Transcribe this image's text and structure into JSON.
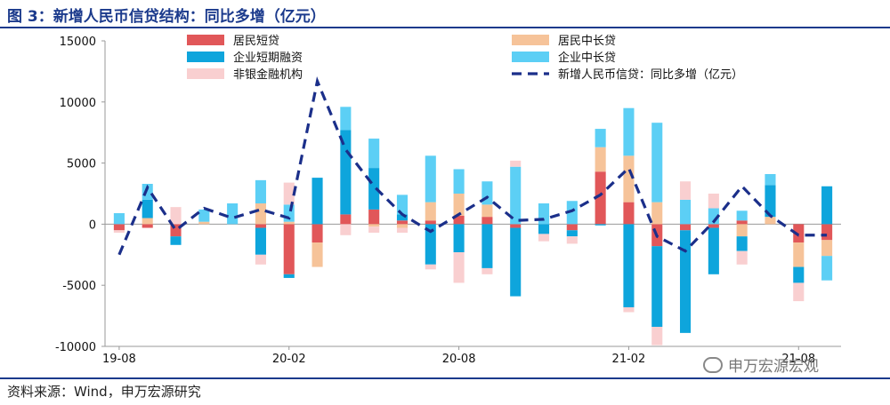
{
  "title": "图 3：新增人民币信贷结构：同比多增（亿元）",
  "source": "资料来源：Wind，申万宏源研究",
  "watermark": "申万宏源宏观",
  "chart_data": {
    "type": "bar",
    "stacked": true,
    "title": "图 3：新增人民币信贷结构：同比多增（亿元）",
    "xlabel": "",
    "ylabel": "",
    "ylim": [
      -10000,
      15000
    ],
    "yticks": [
      15000,
      10000,
      5000,
      0,
      -5000,
      -10000
    ],
    "ytick_labels": [
      "15000",
      "10000",
      "5000",
      "0",
      "-5000",
      "-10000"
    ],
    "xtick_labels": [
      {
        "label": "19-08",
        "index": 0
      },
      {
        "label": "20-02",
        "index": 6
      },
      {
        "label": "20-08",
        "index": 12
      },
      {
        "label": "21-02",
        "index": 18
      },
      {
        "label": "21-08",
        "index": 24
      }
    ],
    "categories": [
      "19-08",
      "19-09",
      "19-10",
      "19-11",
      "19-12",
      "20-01",
      "20-02",
      "20-03",
      "20-04",
      "20-05",
      "20-06",
      "20-07",
      "20-08",
      "20-09",
      "20-10",
      "20-11",
      "20-12",
      "21-01",
      "21-02",
      "21-03",
      "21-04",
      "21-05",
      "21-06",
      "21-07",
      "21-08",
      "21-09"
    ],
    "series": [
      {
        "name": "居民短贷",
        "color": "#e15759",
        "kind": "bar",
        "values": [
          -500,
          -300,
          -1000,
          0,
          0,
          -300,
          -4100,
          -1500,
          800,
          1200,
          300,
          300,
          700,
          600,
          -300,
          0,
          -500,
          4300,
          1800,
          -1800,
          -500,
          -300,
          300,
          0,
          -1500,
          -1300
        ]
      },
      {
        "name": "居民中长贷",
        "color": "#f6c399",
        "kind": "bar",
        "values": [
          0,
          500,
          0,
          200,
          0,
          1700,
          200,
          -2000,
          0,
          -200,
          -300,
          1500,
          1800,
          1000,
          0,
          0,
          0,
          2000,
          3800,
          1800,
          0,
          0,
          -1000,
          600,
          -2000,
          -1300
        ]
      },
      {
        "name": "企业短期融资",
        "color": "#0ea5dc",
        "kind": "bar",
        "values": [
          0,
          1500,
          -700,
          0,
          0,
          -2200,
          -300,
          3800,
          6900,
          3400,
          500,
          -3300,
          -2300,
          -3600,
          -5600,
          -800,
          -500,
          -100,
          -6800,
          -6600,
          -8400,
          -3800,
          -1200,
          2600,
          -1300,
          3100
        ]
      },
      {
        "name": "企业中长贷",
        "color": "#5ccff5",
        "kind": "bar",
        "values": [
          900,
          1300,
          0,
          1000,
          1700,
          1900,
          1400,
          0,
          1900,
          2400,
          1600,
          3800,
          2000,
          1900,
          4700,
          1700,
          1900,
          1500,
          3900,
          6500,
          2000,
          1300,
          800,
          900,
          0,
          -2000
        ]
      },
      {
        "name": "非银金融机构",
        "color": "#f9cfd0",
        "kind": "bar",
        "values": [
          -200,
          0,
          1400,
          0,
          0,
          -800,
          1800,
          0,
          -900,
          -500,
          -400,
          -400,
          -2500,
          -500,
          500,
          -600,
          -600,
          0,
          -400,
          -1500,
          1500,
          1200,
          -1100,
          0,
          -1500,
          0
        ]
      },
      {
        "name": "新增人民币信贷：同比多增（亿元）",
        "color": "#1b2f8a",
        "kind": "line",
        "values": [
          -2500,
          3000,
          -500,
          1300,
          500,
          1200,
          500,
          11700,
          6100,
          3100,
          800,
          -600,
          800,
          2200,
          300,
          400,
          1100,
          2400,
          4600,
          -1000,
          -2200,
          200,
          3100,
          700,
          -900,
          -900
        ]
      }
    ],
    "legend": {
      "placement": "top",
      "columns": 2
    },
    "grid": false
  }
}
